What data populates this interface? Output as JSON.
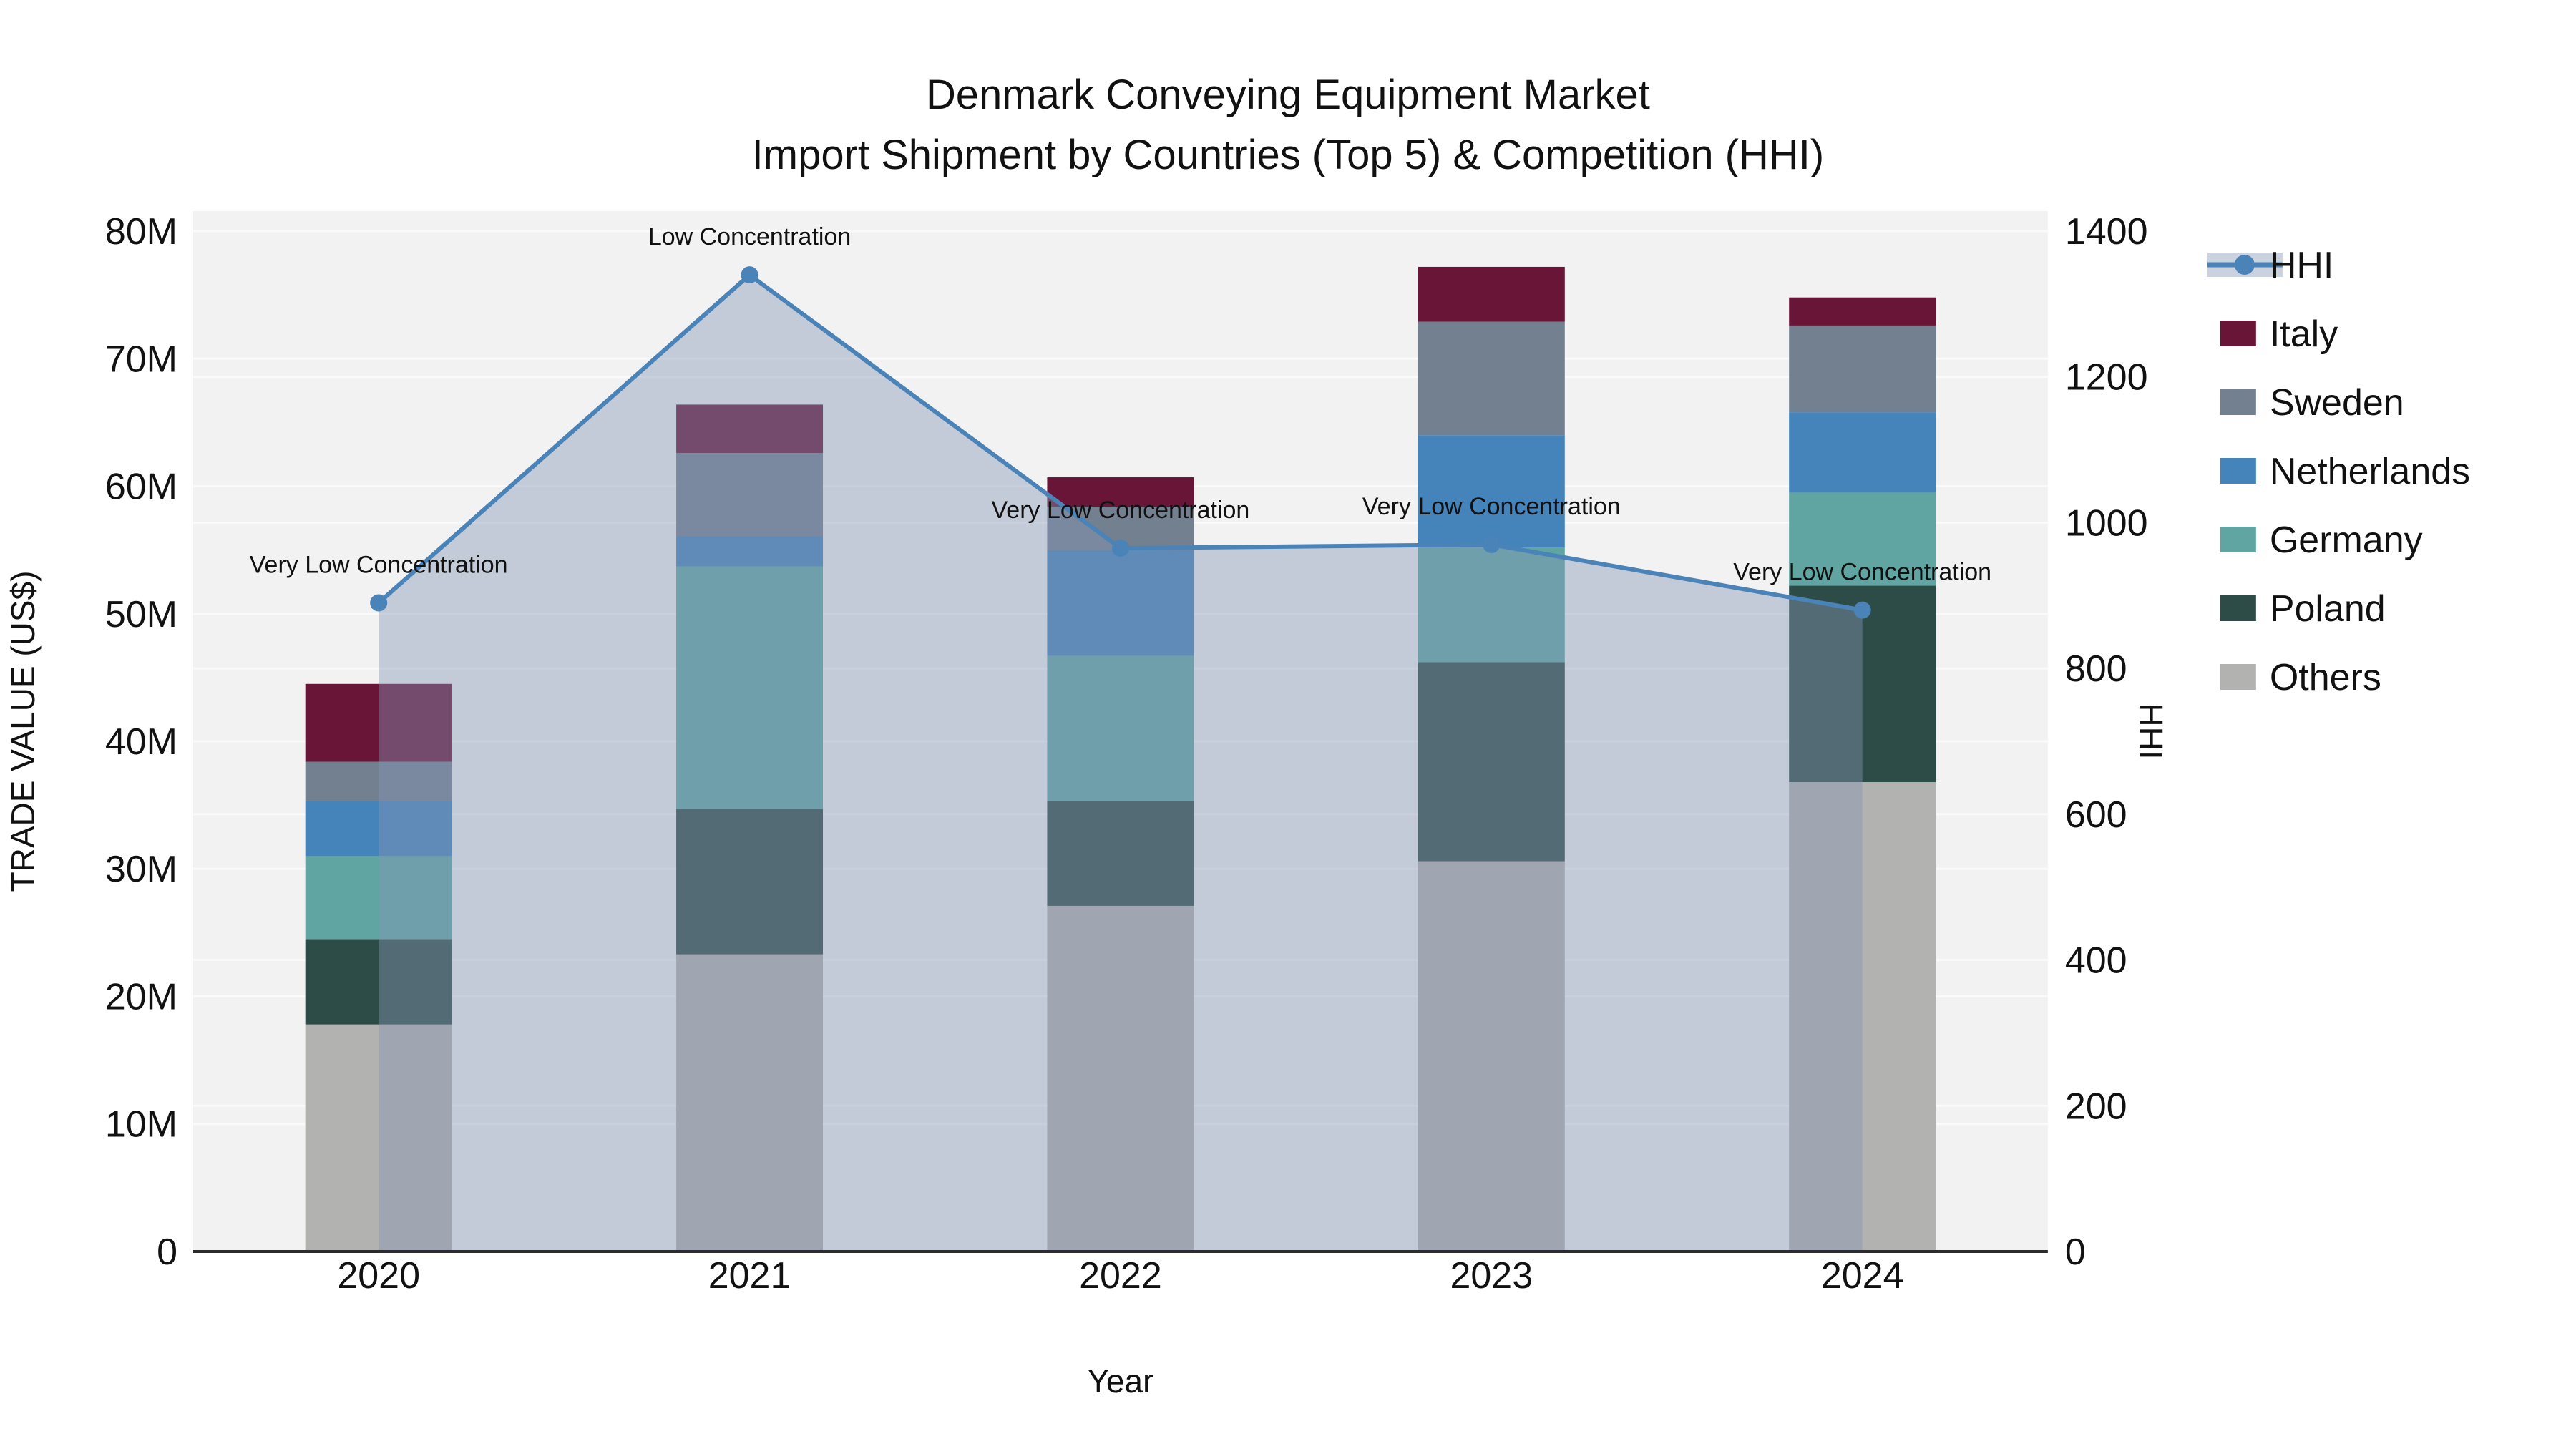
{
  "title": {
    "line1": "Denmark Conveying Equipment Market",
    "line2": "Import Shipment by Countries (Top 5) & Competition (HHI)"
  },
  "axes": {
    "y_left": {
      "label": "TRADE VALUE (US$)",
      "ticks": [
        "0",
        "10M",
        "20M",
        "30M",
        "40M",
        "50M",
        "60M",
        "70M",
        "80M"
      ],
      "lim": [
        0,
        80
      ]
    },
    "y_right": {
      "label": "HHI",
      "ticks": [
        "0",
        "200",
        "400",
        "600",
        "800",
        "1000",
        "1200",
        "1400"
      ],
      "lim": [
        0,
        1400
      ]
    },
    "x": {
      "label": "Year",
      "ticks": [
        "2020",
        "2021",
        "2022",
        "2023",
        "2024"
      ]
    }
  },
  "legend": {
    "items": [
      {
        "label": "HHI",
        "type": "line",
        "color": "#4A83B8"
      },
      {
        "label": "Italy",
        "type": "swatch",
        "color": "#681537"
      },
      {
        "label": "Sweden",
        "type": "swatch",
        "color": "#72808F"
      },
      {
        "label": "Netherlands",
        "type": "swatch",
        "color": "#4583BB"
      },
      {
        "label": "Germany",
        "type": "swatch",
        "color": "#60A5A2"
      },
      {
        "label": "Poland",
        "type": "swatch",
        "color": "#2E4C47"
      },
      {
        "label": "Others",
        "type": "swatch",
        "color": "#B2B2B0"
      }
    ]
  },
  "colors": {
    "plot_bg": "#F2F2F2",
    "grid": "#FBFBFB",
    "axis_line": "#2B2B2B",
    "hhi_line": "#4A83B8",
    "hhi_area_fill": "rgba(134,150,180,0.42)",
    "hhi_legend_band": "#CBD2DF",
    "text": "#111111"
  },
  "chart_data": [
    {
      "type": "bar",
      "stacked": true,
      "title": "Denmark Conveying Equipment Market — Import Shipment by Countries (Top 5)",
      "xlabel": "Year",
      "ylabel": "TRADE VALUE (US$)",
      "unit": "million US$",
      "ylim": [
        0,
        80
      ],
      "grid": true,
      "categories": [
        "2020",
        "2021",
        "2022",
        "2023",
        "2024"
      ],
      "series": [
        {
          "name": "Others",
          "color": "#B2B2B0",
          "values": [
            17.8,
            23.3,
            27.1,
            30.6,
            36.8
          ]
        },
        {
          "name": "Poland",
          "color": "#2E4C47",
          "values": [
            6.7,
            11.4,
            8.2,
            15.6,
            15.4
          ]
        },
        {
          "name": "Germany",
          "color": "#60A5A2",
          "values": [
            6.5,
            19.0,
            11.4,
            9.0,
            7.3
          ]
        },
        {
          "name": "Netherlands",
          "color": "#4583BB",
          "values": [
            4.3,
            2.4,
            8.3,
            8.8,
            6.3
          ]
        },
        {
          "name": "Sweden",
          "color": "#72808F",
          "values": [
            3.1,
            6.5,
            3.4,
            8.9,
            6.8
          ]
        },
        {
          "name": "Italy",
          "color": "#681537",
          "values": [
            6.1,
            3.8,
            2.3,
            4.3,
            2.2
          ]
        }
      ],
      "totals": [
        44.5,
        66.4,
        60.7,
        77.2,
        74.8
      ]
    },
    {
      "type": "line",
      "name": "HHI",
      "axis": "right",
      "area_fill": true,
      "ylabel": "HHI",
      "ylim": [
        0,
        1400
      ],
      "x": [
        "2020",
        "2021",
        "2022",
        "2023",
        "2024"
      ],
      "values": [
        890,
        1340,
        965,
        970,
        880
      ],
      "annotations": [
        "Very Low Concentration",
        "Low Concentration",
        "Very Low Concentration",
        "Very Low Concentration",
        "Very Low Concentration"
      ],
      "legend_position": "right"
    }
  ]
}
